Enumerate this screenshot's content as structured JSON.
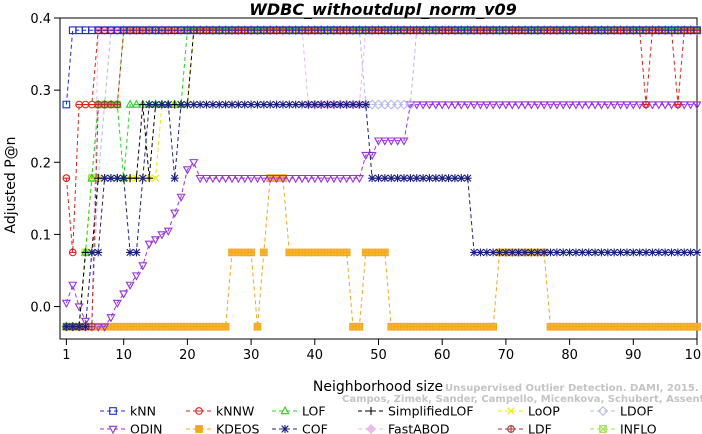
{
  "citation": {
    "line1": "Unsupervised Outlier Detection. DAMI, 2015.",
    "line2": "Campos, Zimek, Sander, Campello, Micenkova, Schubert, Assent, Houle"
  },
  "chart_data": {
    "type": "line",
    "title": "WDBC_withoutdupl_norm_v09",
    "xlabel": "Neighborhood size",
    "ylabel": "Adjusted P@n",
    "xlim": [
      0,
      100
    ],
    "ylim": [
      -0.045,
      0.4
    ],
    "xticks": [
      1,
      10,
      20,
      30,
      40,
      50,
      60,
      70,
      80,
      90,
      100
    ],
    "yticks": [
      0.0,
      0.1,
      0.2,
      0.3,
      0.4
    ],
    "ytick_labels": [
      "0.0",
      "0.1",
      "0.2",
      "0.3",
      "0.4"
    ],
    "grid": false,
    "legend_position": "bottom",
    "series": [
      {
        "name": "kNN",
        "color": "#1f2fd6",
        "marker": "square",
        "segments": [
          [
            1,
            0.28
          ],
          [
            2,
            0.383
          ],
          [
            100,
            0.383
          ]
        ]
      },
      {
        "name": "kNNW",
        "color": "#e0221c",
        "marker": "circle",
        "segments": [
          [
            1,
            0.178
          ],
          [
            2,
            0.075
          ],
          [
            3,
            0.28
          ],
          [
            5,
            0.28
          ],
          [
            6,
            0.383
          ],
          [
            91,
            0.383
          ],
          [
            92,
            0.28
          ],
          [
            93,
            0.383
          ],
          [
            96,
            0.383
          ],
          [
            97,
            0.28
          ],
          [
            98,
            0.383
          ],
          [
            100,
            0.383
          ]
        ]
      },
      {
        "name": "LOF",
        "color": "#26d426",
        "marker": "triangle",
        "segments": [
          [
            1,
            -0.028
          ],
          [
            3,
            -0.028
          ],
          [
            4,
            0.075
          ],
          [
            5,
            0.178
          ],
          [
            6,
            0.28
          ],
          [
            9,
            0.28
          ],
          [
            10,
            0.178
          ],
          [
            11,
            0.28
          ],
          [
            19,
            0.28
          ],
          [
            20,
            0.383
          ],
          [
            100,
            0.383
          ]
        ]
      },
      {
        "name": "SimplifiedLOF",
        "color": "#000000",
        "marker": "plus",
        "segments": [
          [
            1,
            -0.028
          ],
          [
            3,
            -0.028
          ],
          [
            4,
            0.075
          ],
          [
            5,
            0.075
          ],
          [
            6,
            0.178
          ],
          [
            12,
            0.178
          ],
          [
            13,
            0.28
          ],
          [
            14,
            0.178
          ],
          [
            15,
            0.28
          ],
          [
            20,
            0.28
          ],
          [
            21,
            0.383
          ],
          [
            100,
            0.383
          ]
        ]
      },
      {
        "name": "LoOP",
        "color": "#ecec00",
        "marker": "x",
        "segments": [
          [
            1,
            -0.028
          ],
          [
            3,
            -0.028
          ],
          [
            4,
            0.075
          ],
          [
            5,
            0.178
          ],
          [
            15,
            0.178
          ],
          [
            16,
            0.28
          ],
          [
            20,
            0.28
          ],
          [
            21,
            0.383
          ],
          [
            100,
            0.383
          ]
        ]
      },
      {
        "name": "LDOF",
        "color": "#b8b8ee",
        "marker": "diamond",
        "segments": [
          [
            1,
            -0.028
          ],
          [
            5,
            -0.028
          ],
          [
            6,
            0.178
          ],
          [
            7,
            0.28
          ],
          [
            8,
            0.383
          ],
          [
            47,
            0.383
          ],
          [
            48,
            0.28
          ],
          [
            55,
            0.28
          ],
          [
            56,
            0.383
          ],
          [
            100,
            0.383
          ]
        ]
      },
      {
        "name": "ODIN",
        "color": "#9a30e4",
        "marker": "trianglepoint",
        "segments": [
          [
            1,
            0.005
          ],
          [
            2,
            0.03
          ],
          [
            3,
            0.0
          ],
          [
            4,
            -0.02
          ],
          [
            5,
            -0.028
          ],
          [
            7,
            -0.028
          ],
          [
            8,
            -0.015
          ],
          [
            9,
            0.005
          ],
          [
            10,
            0.018
          ],
          [
            11,
            0.03
          ],
          [
            12,
            0.043
          ],
          [
            13,
            0.057
          ],
          [
            14,
            0.087
          ],
          [
            15,
            0.093
          ],
          [
            16,
            0.1
          ],
          [
            17,
            0.105
          ],
          [
            18,
            0.13
          ],
          [
            19,
            0.152
          ],
          [
            20,
            0.19
          ],
          [
            21,
            0.2
          ],
          [
            22,
            0.178
          ],
          [
            45,
            0.178
          ],
          [
            46,
            0.178
          ],
          [
            47,
            0.178
          ],
          [
            48,
            0.21
          ],
          [
            49,
            0.21
          ],
          [
            50,
            0.23
          ],
          [
            54,
            0.23
          ],
          [
            55,
            0.28
          ],
          [
            100,
            0.28
          ]
        ]
      },
      {
        "name": "KDEOS",
        "color": "#f5a81a",
        "marker": "squareplus",
        "segments": [
          [
            1,
            -0.028
          ],
          [
            26,
            -0.028
          ],
          [
            27,
            0.075
          ],
          [
            30,
            0.075
          ],
          [
            31,
            -0.028
          ],
          [
            32,
            0.075
          ],
          [
            33,
            0.178
          ],
          [
            35,
            0.178
          ],
          [
            36,
            0.075
          ],
          [
            45,
            0.075
          ],
          [
            46,
            -0.028
          ],
          [
            47,
            -0.028
          ],
          [
            48,
            0.075
          ],
          [
            51,
            0.075
          ],
          [
            52,
            -0.028
          ],
          [
            68,
            -0.028
          ],
          [
            69,
            0.075
          ],
          [
            76,
            0.075
          ],
          [
            77,
            -0.028
          ],
          [
            100,
            -0.028
          ]
        ]
      },
      {
        "name": "COF",
        "color": "#1a2080",
        "marker": "star",
        "segments": [
          [
            1,
            -0.028
          ],
          [
            4,
            -0.028
          ],
          [
            5,
            0.075
          ],
          [
            6,
            0.075
          ],
          [
            7,
            0.178
          ],
          [
            10,
            0.178
          ],
          [
            11,
            0.075
          ],
          [
            12,
            0.075
          ],
          [
            13,
            0.178
          ],
          [
            14,
            0.28
          ],
          [
            17,
            0.28
          ],
          [
            18,
            0.178
          ],
          [
            19,
            0.28
          ],
          [
            48,
            0.28
          ],
          [
            49,
            0.178
          ],
          [
            64,
            0.178
          ],
          [
            65,
            0.075
          ],
          [
            100,
            0.075
          ]
        ]
      },
      {
        "name": "FastABOD",
        "color": "#f0b6f0",
        "marker": "diamondfill",
        "segments": [
          [
            1,
            -0.028
          ],
          [
            5,
            -0.028
          ],
          [
            6,
            0.383
          ],
          [
            38,
            0.383
          ],
          [
            39,
            0.28
          ],
          [
            47,
            0.28
          ],
          [
            48,
            0.383
          ],
          [
            100,
            0.383
          ]
        ]
      },
      {
        "name": "LDF",
        "color": "#b03030",
        "marker": "circleplus",
        "segments": [
          [
            1,
            -0.028
          ],
          [
            5,
            -0.028
          ],
          [
            6,
            0.28
          ],
          [
            9,
            0.28
          ],
          [
            10,
            0.383
          ],
          [
            100,
            0.383
          ]
        ]
      },
      {
        "name": "INFLO",
        "color": "#9ce04a",
        "marker": "squarex",
        "segments": [
          [
            1,
            -0.028
          ],
          [
            3,
            -0.028
          ],
          [
            4,
            0.075
          ],
          [
            5,
            0.178
          ],
          [
            6,
            0.28
          ],
          [
            9,
            0.28
          ],
          [
            10,
            0.383
          ],
          [
            100,
            0.383
          ]
        ]
      }
    ],
    "legend_order": [
      "kNN",
      "kNNW",
      "LOF",
      "SimplifiedLOF",
      "LoOP",
      "LDOF",
      "ODIN",
      "KDEOS",
      "COF",
      "FastABOD",
      "LDF",
      "INFLO"
    ]
  }
}
